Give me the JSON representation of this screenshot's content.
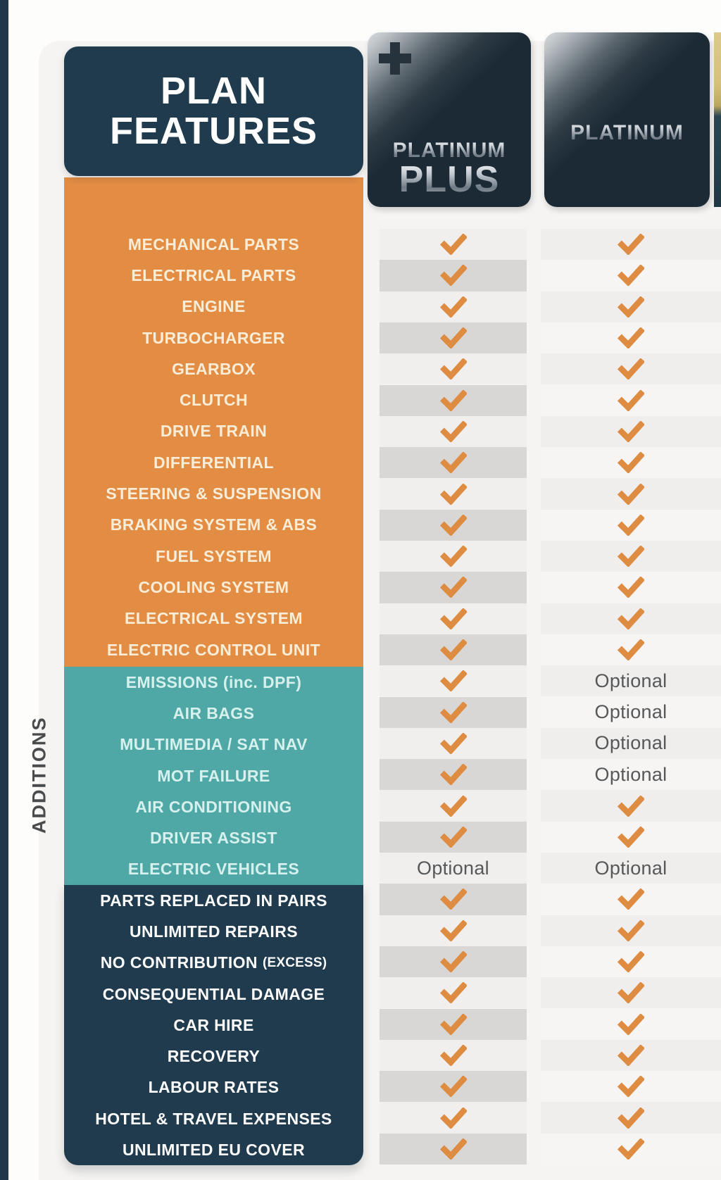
{
  "header": {
    "title": "PLAN FEATURES",
    "plans": [
      {
        "id": "platinum-plus",
        "line1": "PLATINUM",
        "line2": "PLUS",
        "has_plus_icon": true
      },
      {
        "id": "platinum",
        "line1": "PLATINUM"
      },
      {
        "id": "partial-plan-edge",
        "note": "partially visible badge at right edge"
      }
    ]
  },
  "additions_side_label": "ADDITIONS",
  "optional_text": "Optional",
  "colors": {
    "orange_panel": "#E28C44",
    "teal_panel": "#50A8A6",
    "navy_panel": "#1F3B4D",
    "badge_navy": "#1C2A35",
    "badge_silver": "#C3CAD0",
    "gold_edge": "#D5C079",
    "check_orange": "#DE8C42",
    "stripe_col1_dark": "#D8D7D5",
    "stripe_col1_light": "#F0EFED",
    "stripe_col2_gray": "#EFEEEC",
    "stripe_col2_white": "#F6F5F3",
    "optional_text_color": "#57585A",
    "orange_label_text": "#F9EDD7",
    "teal_label_text": "#D6F1ED",
    "navy_label_text": "#FBFBFB"
  },
  "chart_data": {
    "type": "table",
    "title": "PLAN FEATURES",
    "columns": [
      "PLAN FEATURES",
      "PLATINUM PLUS",
      "PLATINUM"
    ],
    "cell_states": [
      "check",
      "optional"
    ],
    "sections": [
      {
        "id": "core",
        "rows": [
          {
            "label": "MECHANICAL PARTS",
            "platinum_plus": "check",
            "platinum": "check"
          },
          {
            "label": "ELECTRICAL PARTS",
            "platinum_plus": "check",
            "platinum": "check"
          },
          {
            "label": "ENGINE",
            "platinum_plus": "check",
            "platinum": "check"
          },
          {
            "label": "TURBOCHARGER",
            "platinum_plus": "check",
            "platinum": "check"
          },
          {
            "label": "GEARBOX",
            "platinum_plus": "check",
            "platinum": "check"
          },
          {
            "label": "CLUTCH",
            "platinum_plus": "check",
            "platinum": "check"
          },
          {
            "label": "DRIVE TRAIN",
            "platinum_plus": "check",
            "platinum": "check"
          },
          {
            "label": "DIFFERENTIAL",
            "platinum_plus": "check",
            "platinum": "check"
          },
          {
            "label": "STEERING & SUSPENSION",
            "platinum_plus": "check",
            "platinum": "check"
          },
          {
            "label": "BRAKING SYSTEM & ABS",
            "platinum_plus": "check",
            "platinum": "check"
          },
          {
            "label": "FUEL SYSTEM",
            "platinum_plus": "check",
            "platinum": "check"
          },
          {
            "label": "COOLING SYSTEM",
            "platinum_plus": "check",
            "platinum": "check"
          },
          {
            "label": "ELECTRICAL SYSTEM",
            "platinum_plus": "check",
            "platinum": "check"
          },
          {
            "label": "ELECTRIC CONTROL UNIT",
            "platinum_plus": "check",
            "platinum": "check"
          }
        ]
      },
      {
        "id": "additions",
        "side_label": "ADDITIONS",
        "rows": [
          {
            "label": "EMISSIONS (inc. DPF)",
            "platinum_plus": "check",
            "platinum": "optional"
          },
          {
            "label": "AIR BAGS",
            "platinum_plus": "check",
            "platinum": "optional"
          },
          {
            "label": "MULTIMEDIA / SAT NAV",
            "platinum_plus": "check",
            "platinum": "optional"
          },
          {
            "label": "MOT FAILURE",
            "platinum_plus": "check",
            "platinum": "optional"
          },
          {
            "label": "AIR CONDITIONING",
            "platinum_plus": "check",
            "platinum": "check"
          },
          {
            "label": "DRIVER ASSIST",
            "platinum_plus": "check",
            "platinum": "check"
          },
          {
            "label": "ELECTRIC VEHICLES",
            "platinum_plus": "optional",
            "platinum": "optional"
          }
        ]
      },
      {
        "id": "benefits",
        "rows": [
          {
            "label": "PARTS REPLACED IN PAIRS",
            "platinum_plus": "check",
            "platinum": "check"
          },
          {
            "label": "UNLIMITED REPAIRS",
            "platinum_plus": "check",
            "platinum": "check"
          },
          {
            "label": "NO CONTRIBUTION",
            "label_suffix": "(EXCESS)",
            "platinum_plus": "check",
            "platinum": "check"
          },
          {
            "label": "CONSEQUENTIAL DAMAGE",
            "platinum_plus": "check",
            "platinum": "check"
          },
          {
            "label": "CAR HIRE",
            "platinum_plus": "check",
            "platinum": "check"
          },
          {
            "label": "RECOVERY",
            "platinum_plus": "check",
            "platinum": "check"
          },
          {
            "label": "LABOUR RATES",
            "platinum_plus": "check",
            "platinum": "check"
          },
          {
            "label": "HOTEL & TRAVEL EXPENSES",
            "platinum_plus": "check",
            "platinum": "check"
          },
          {
            "label": "UNLIMITED EU COVER",
            "platinum_plus": "check",
            "platinum": "check"
          }
        ]
      }
    ]
  }
}
